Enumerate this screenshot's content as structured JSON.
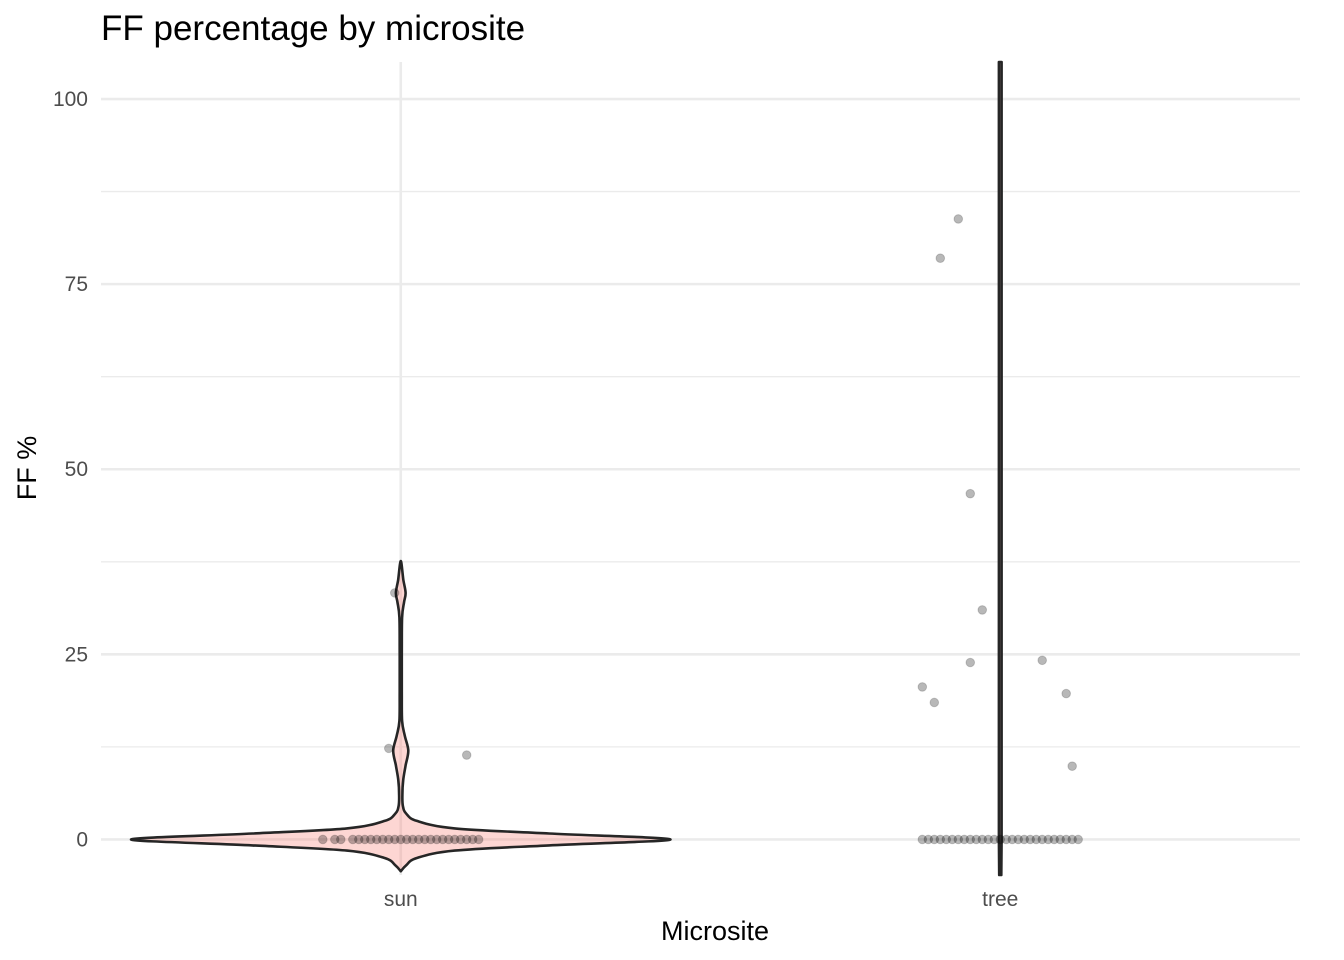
{
  "chart_data": {
    "type": "violin",
    "title": "FF percentage by microsite",
    "xlabel": "Microsite",
    "ylabel": "FF %",
    "categories": [
      "sun",
      "tree"
    ],
    "ylim": [
      -4.8,
      105
    ],
    "yticks": [
      0,
      25,
      50,
      75,
      100
    ],
    "yticklabels": [
      "0",
      "25",
      "50",
      "75",
      "100"
    ],
    "grid": true,
    "legend": "none",
    "colors": {
      "violin_fill": "#f8766d",
      "violin_fill_opacity": 0.3,
      "violin_stroke": "#262626",
      "point": "#000000",
      "point_opacity": 0.28
    },
    "violins": [
      {
        "category": "sun",
        "profile": [
          [
            -4.3,
            0.0
          ],
          [
            -3.5,
            0.02
          ],
          [
            -2.5,
            0.06
          ],
          [
            -1.5,
            0.2
          ],
          [
            -0.8,
            0.55
          ],
          [
            0.0,
            1.0
          ],
          [
            0.8,
            0.55
          ],
          [
            1.5,
            0.2
          ],
          [
            2.5,
            0.06
          ],
          [
            3.5,
            0.02
          ],
          [
            4.5,
            0.008
          ],
          [
            6.0,
            0.006
          ],
          [
            8.0,
            0.009
          ],
          [
            10.0,
            0.018
          ],
          [
            12.0,
            0.028
          ],
          [
            14.0,
            0.015
          ],
          [
            16.0,
            0.005
          ],
          [
            20.0,
            0.004
          ],
          [
            25.0,
            0.004
          ],
          [
            30.0,
            0.005
          ],
          [
            32.0,
            0.012
          ],
          [
            33.3,
            0.018
          ],
          [
            35.0,
            0.01
          ],
          [
            37.6,
            0.0
          ]
        ]
      },
      {
        "category": "tree",
        "profile": [
          [
            -4.8,
            0.004
          ],
          [
            0.0,
            0.005
          ],
          [
            25.0,
            0.005
          ],
          [
            50.0,
            0.005
          ],
          [
            75.0,
            0.005
          ],
          [
            100.0,
            0.005
          ],
          [
            105.0,
            0.005
          ]
        ]
      }
    ],
    "points": [
      {
        "category": "sun",
        "x_offset": -0.01,
        "y": 33.3
      },
      {
        "category": "sun",
        "x_offset": -0.02,
        "y": 12.3
      },
      {
        "category": "sun",
        "x_offset": 0.11,
        "y": 11.4
      },
      {
        "category": "sun",
        "x_offset": -0.13,
        "y": 0
      },
      {
        "category": "sun",
        "x_offset": -0.11,
        "y": 0
      },
      {
        "category": "sun",
        "x_offset": -0.1,
        "y": 0
      },
      {
        "category": "sun",
        "x_offset": -0.08,
        "y": 0
      },
      {
        "category": "sun",
        "x_offset": -0.07,
        "y": 0
      },
      {
        "category": "sun",
        "x_offset": -0.06,
        "y": 0
      },
      {
        "category": "sun",
        "x_offset": -0.05,
        "y": 0
      },
      {
        "category": "sun",
        "x_offset": -0.04,
        "y": 0
      },
      {
        "category": "sun",
        "x_offset": -0.03,
        "y": 0
      },
      {
        "category": "sun",
        "x_offset": -0.02,
        "y": 0
      },
      {
        "category": "sun",
        "x_offset": -0.01,
        "y": 0
      },
      {
        "category": "sun",
        "x_offset": 0.0,
        "y": 0
      },
      {
        "category": "sun",
        "x_offset": 0.01,
        "y": 0
      },
      {
        "category": "sun",
        "x_offset": 0.02,
        "y": 0
      },
      {
        "category": "sun",
        "x_offset": 0.03,
        "y": 0
      },
      {
        "category": "sun",
        "x_offset": 0.04,
        "y": 0
      },
      {
        "category": "sun",
        "x_offset": 0.05,
        "y": 0
      },
      {
        "category": "sun",
        "x_offset": 0.06,
        "y": 0
      },
      {
        "category": "sun",
        "x_offset": 0.07,
        "y": 0
      },
      {
        "category": "sun",
        "x_offset": 0.08,
        "y": 0
      },
      {
        "category": "sun",
        "x_offset": 0.09,
        "y": 0
      },
      {
        "category": "sun",
        "x_offset": 0.1,
        "y": 0
      },
      {
        "category": "sun",
        "x_offset": 0.11,
        "y": 0
      },
      {
        "category": "sun",
        "x_offset": 0.12,
        "y": 0
      },
      {
        "category": "sun",
        "x_offset": 0.13,
        "y": 0
      },
      {
        "category": "tree",
        "x_offset": -0.07,
        "y": 83.8
      },
      {
        "category": "tree",
        "x_offset": -0.1,
        "y": 78.5
      },
      {
        "category": "tree",
        "x_offset": -0.05,
        "y": 46.7
      },
      {
        "category": "tree",
        "x_offset": -0.03,
        "y": 31.0
      },
      {
        "category": "tree",
        "x_offset": -0.05,
        "y": 23.9
      },
      {
        "category": "tree",
        "x_offset": 0.07,
        "y": 24.2
      },
      {
        "category": "tree",
        "x_offset": -0.13,
        "y": 20.6
      },
      {
        "category": "tree",
        "x_offset": -0.11,
        "y": 18.5
      },
      {
        "category": "tree",
        "x_offset": 0.11,
        "y": 19.7
      },
      {
        "category": "tree",
        "x_offset": 0.12,
        "y": 9.9
      },
      {
        "category": "tree",
        "x_offset": -0.13,
        "y": 0
      },
      {
        "category": "tree",
        "x_offset": -0.12,
        "y": 0
      },
      {
        "category": "tree",
        "x_offset": -0.11,
        "y": 0
      },
      {
        "category": "tree",
        "x_offset": -0.1,
        "y": 0
      },
      {
        "category": "tree",
        "x_offset": -0.09,
        "y": 0
      },
      {
        "category": "tree",
        "x_offset": -0.08,
        "y": 0
      },
      {
        "category": "tree",
        "x_offset": -0.07,
        "y": 0
      },
      {
        "category": "tree",
        "x_offset": -0.06,
        "y": 0
      },
      {
        "category": "tree",
        "x_offset": -0.05,
        "y": 0
      },
      {
        "category": "tree",
        "x_offset": -0.04,
        "y": 0
      },
      {
        "category": "tree",
        "x_offset": -0.03,
        "y": 0
      },
      {
        "category": "tree",
        "x_offset": -0.02,
        "y": 0
      },
      {
        "category": "tree",
        "x_offset": -0.01,
        "y": 0
      },
      {
        "category": "tree",
        "x_offset": 0.0,
        "y": 0
      },
      {
        "category": "tree",
        "x_offset": 0.01,
        "y": 0
      },
      {
        "category": "tree",
        "x_offset": 0.02,
        "y": 0
      },
      {
        "category": "tree",
        "x_offset": 0.03,
        "y": 0
      },
      {
        "category": "tree",
        "x_offset": 0.04,
        "y": 0
      },
      {
        "category": "tree",
        "x_offset": 0.05,
        "y": 0
      },
      {
        "category": "tree",
        "x_offset": 0.06,
        "y": 0
      },
      {
        "category": "tree",
        "x_offset": 0.07,
        "y": 0
      },
      {
        "category": "tree",
        "x_offset": 0.08,
        "y": 0
      },
      {
        "category": "tree",
        "x_offset": 0.09,
        "y": 0
      },
      {
        "category": "tree",
        "x_offset": 0.1,
        "y": 0
      },
      {
        "category": "tree",
        "x_offset": 0.11,
        "y": 0
      },
      {
        "category": "tree",
        "x_offset": 0.12,
        "y": 0
      },
      {
        "category": "tree",
        "x_offset": 0.13,
        "y": 0
      }
    ]
  }
}
